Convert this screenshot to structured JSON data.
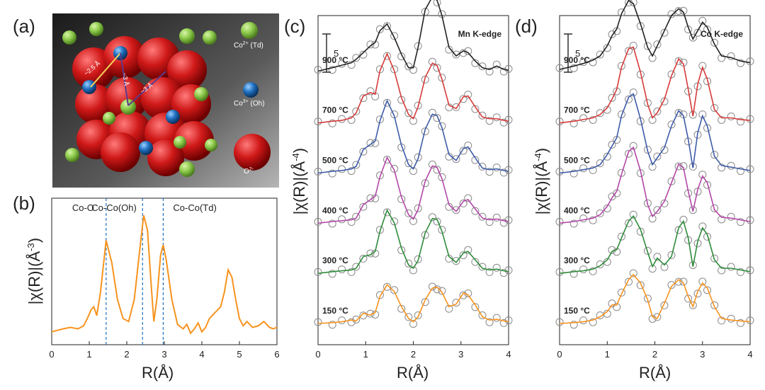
{
  "figure": {
    "panel_labels": {
      "a": "(a)",
      "b": "(b)",
      "c": "(c)",
      "d": "(d)"
    },
    "crystal_legend": [
      {
        "label_main": "Co",
        "label_sup": "2+",
        "label_tail": " (Td)",
        "color": "#8ecb4c"
      },
      {
        "label_main": "Co",
        "label_sup": "3+",
        "label_tail": " (Oh)",
        "color": "#1f6fc0"
      },
      {
        "label_main": "O",
        "label_sup": "2-",
        "label_tail": "",
        "color": "#d01919"
      }
    ],
    "crystal_distances": [
      "~2.5 Å",
      "~3 Å",
      "~3 Å"
    ]
  },
  "chart_data": [
    {
      "id": "b",
      "type": "line",
      "xlabel": "R(Å)",
      "ylabel": "|χ(R)|(Å-3)",
      "xlim": [
        0,
        6
      ],
      "xticks": [
        0,
        1,
        2,
        3,
        4,
        5,
        6
      ],
      "color": "#f7931e",
      "annotations": [
        {
          "text": "Co-O",
          "x": 1.45
        },
        {
          "text": "Co-Co(Oh)",
          "x": 2.42
        },
        {
          "text": "Co-Co(Td)",
          "x": 2.97
        }
      ],
      "x": [
        0,
        0.3,
        0.5,
        0.7,
        0.85,
        0.95,
        1.05,
        1.12,
        1.2,
        1.3,
        1.45,
        1.6,
        1.75,
        1.9,
        2.05,
        2.2,
        2.35,
        2.45,
        2.55,
        2.65,
        2.72,
        2.8,
        2.9,
        2.97,
        3.05,
        3.2,
        3.35,
        3.5,
        3.6,
        3.7,
        3.8,
        3.9,
        4.0,
        4.1,
        4.2,
        4.35,
        4.5,
        4.6,
        4.7,
        4.8,
        4.9,
        5.0,
        5.1,
        5.2,
        5.35,
        5.5,
        5.65,
        5.8,
        5.9,
        6.0
      ],
      "y": [
        0.03,
        0.05,
        0.06,
        0.05,
        0.07,
        0.12,
        0.18,
        0.2,
        0.14,
        0.3,
        0.65,
        0.5,
        0.25,
        0.12,
        0.1,
        0.25,
        0.6,
        0.82,
        0.72,
        0.35,
        0.1,
        0.25,
        0.55,
        0.62,
        0.52,
        0.25,
        0.08,
        0.05,
        0.08,
        0.02,
        0.05,
        0.09,
        0.03,
        0.06,
        0.12,
        0.16,
        0.2,
        0.3,
        0.45,
        0.4,
        0.25,
        0.12,
        0.07,
        0.1,
        0.06,
        0.07,
        0.1,
        0.06,
        0.05,
        0.06
      ]
    },
    {
      "id": "c",
      "type": "line",
      "title": "Mn K-edge",
      "xlabel": "R(Å)",
      "ylabel": "|χ(R)|(Å-4)",
      "xlim": [
        0,
        4
      ],
      "xticks": [
        0,
        1,
        2,
        3,
        4
      ],
      "scale_bar": "5",
      "x": [
        0,
        0.3,
        0.5,
        0.7,
        0.8,
        0.95,
        1.1,
        1.2,
        1.3,
        1.45,
        1.6,
        1.75,
        1.9,
        2.0,
        2.1,
        2.25,
        2.4,
        2.5,
        2.6,
        2.75,
        2.9,
        3.05,
        3.15,
        3.3,
        3.45,
        3.6,
        3.75,
        3.9,
        4.0
      ],
      "series": [
        {
          "name": "150 °C",
          "color": "#f7931e",
          "y": [
            0.0,
            0.1,
            0.2,
            0.4,
            0.3,
            1.2,
            1.0,
            1.3,
            3.2,
            4.6,
            3.8,
            2.0,
            0.6,
            0.2,
            0.8,
            2.8,
            4.2,
            4.3,
            3.7,
            2.0,
            2.3,
            3.6,
            3.4,
            2.2,
            0.8,
            0.4,
            0.5,
            0.3,
            0.2
          ]
        },
        {
          "name": "300 °C",
          "color": "#2e8b3a",
          "y": [
            0.0,
            0.2,
            0.3,
            0.4,
            0.6,
            2.0,
            2.2,
            2.6,
            5.0,
            7.5,
            6.0,
            3.0,
            1.0,
            0.6,
            1.5,
            4.8,
            6.5,
            6.4,
            5.0,
            2.0,
            1.3,
            2.4,
            2.6,
            1.6,
            0.6,
            0.4,
            0.5,
            0.3,
            0.2
          ]
        },
        {
          "name": "400 °C",
          "color": "#b247a8",
          "y": [
            0.0,
            0.2,
            0.3,
            0.4,
            0.6,
            2.2,
            2.8,
            3.2,
            5.5,
            7.8,
            6.3,
            3.1,
            1.0,
            0.5,
            1.6,
            5.0,
            6.8,
            6.6,
            5.3,
            2.2,
            1.4,
            2.6,
            2.8,
            1.7,
            0.6,
            0.4,
            0.5,
            0.3,
            0.2
          ]
        },
        {
          "name": "500 °C",
          "color": "#3e5ba8",
          "y": [
            0.0,
            0.2,
            0.3,
            0.5,
            0.8,
            2.8,
            3.4,
            3.8,
            6.2,
            8.6,
            6.8,
            3.3,
            1.0,
            0.5,
            1.7,
            5.2,
            7.0,
            6.8,
            5.4,
            2.2,
            1.5,
            2.9,
            3.1,
            1.8,
            0.6,
            0.4,
            0.5,
            0.3,
            0.2
          ]
        },
        {
          "name": "700 °C",
          "color": "#d63a3a",
          "y": [
            0.0,
            0.2,
            0.3,
            0.6,
            1.2,
            3.2,
            3.6,
            3.4,
            6.2,
            8.2,
            6.2,
            3.0,
            1.0,
            0.5,
            1.9,
            5.4,
            7.1,
            6.8,
            5.2,
            2.1,
            1.7,
            3.1,
            3.2,
            1.9,
            0.7,
            0.5,
            0.5,
            0.3,
            0.2
          ]
        },
        {
          "name": "900 °C",
          "color": "#222222",
          "y": [
            0.2,
            0.6,
            0.9,
            1.2,
            1.6,
            2.4,
            3.2,
            3.6,
            5.0,
            5.8,
            4.2,
            2.2,
            0.6,
            0.6,
            3.0,
            7.5,
            9.0,
            8.6,
            6.8,
            3.0,
            2.0,
            2.6,
            2.4,
            1.4,
            0.6,
            0.4,
            0.8,
            0.4,
            0.3
          ]
        }
      ]
    },
    {
      "id": "d",
      "type": "line",
      "title": "Co K-edge",
      "xlabel": "R(Å)",
      "ylabel": "|χ(R)|(Å-4)",
      "xlim": [
        0,
        4
      ],
      "xticks": [
        0,
        1,
        2,
        3,
        4
      ],
      "scale_bar": "5",
      "x": [
        0,
        0.3,
        0.5,
        0.7,
        0.85,
        1.0,
        1.1,
        1.2,
        1.3,
        1.45,
        1.55,
        1.7,
        1.85,
        1.95,
        2.05,
        2.2,
        2.35,
        2.5,
        2.6,
        2.7,
        2.8,
        2.9,
        3.0,
        3.1,
        3.25,
        3.4,
        3.6,
        3.8,
        4.0
      ],
      "series": [
        {
          "name": "150 °C",
          "color": "#f7931e",
          "y": [
            0.0,
            0.1,
            0.2,
            0.4,
            0.8,
            1.4,
            2.2,
            2.2,
            3.5,
            5.2,
            5.8,
            4.8,
            2.8,
            0.8,
            0.6,
            2.4,
            4.4,
            5.2,
            4.8,
            3.2,
            2.0,
            3.8,
            4.8,
            4.2,
            2.0,
            0.6,
            0.4,
            0.3,
            0.2
          ]
        },
        {
          "name": "300 °C",
          "color": "#2e8b3a",
          "y": [
            0.0,
            0.2,
            0.3,
            0.5,
            0.9,
            1.6,
            2.6,
            2.8,
            4.2,
            6.2,
            6.8,
            5.2,
            2.5,
            0.8,
            1.8,
            1.0,
            2.0,
            5.4,
            6.2,
            4.2,
            0.8,
            3.8,
            5.4,
            4.6,
            1.6,
            0.6,
            0.6,
            0.4,
            0.2
          ]
        },
        {
          "name": "400 °C",
          "color": "#b247a8",
          "y": [
            0.0,
            0.2,
            0.4,
            0.6,
            1.0,
            2.0,
            3.0,
            3.8,
            5.8,
            8.5,
            9.0,
            6.2,
            2.2,
            0.8,
            1.4,
            2.6,
            4.8,
            7.0,
            6.6,
            3.8,
            1.4,
            4.0,
            5.6,
            4.8,
            1.6,
            0.7,
            0.6,
            0.4,
            0.2
          ]
        },
        {
          "name": "500 °C",
          "color": "#3e5ba8",
          "y": [
            0.0,
            0.2,
            0.4,
            0.6,
            1.0,
            2.2,
            3.2,
            4.2,
            6.8,
            9.0,
            9.4,
            6.4,
            2.6,
            1.0,
            1.8,
            3.0,
            5.6,
            7.4,
            6.8,
            4.0,
            0.6,
            4.8,
            6.8,
            5.6,
            2.0,
            0.9,
            0.7,
            0.5,
            0.3
          ]
        },
        {
          "name": "700 °C",
          "color": "#d63a3a",
          "y": [
            0.0,
            0.2,
            0.4,
            0.6,
            1.0,
            1.8,
            2.8,
            4.0,
            6.6,
            8.8,
            9.0,
            6.0,
            2.2,
            0.6,
            1.2,
            2.8,
            5.6,
            7.6,
            7.0,
            4.0,
            0.8,
            4.6,
            6.6,
            5.2,
            1.6,
            0.6,
            0.6,
            0.4,
            0.3
          ]
        },
        {
          "name": "900 °C",
          "color": "#222222",
          "y": [
            0.4,
            0.8,
            1.1,
            1.5,
            2.0,
            3.2,
            4.4,
            5.2,
            7.0,
            8.6,
            8.2,
            5.8,
            3.0,
            2.0,
            3.2,
            5.0,
            6.8,
            7.6,
            7.2,
            5.4,
            4.0,
            5.0,
            6.0,
            5.4,
            3.4,
            2.0,
            1.8,
            1.4,
            1.2
          ]
        }
      ]
    }
  ]
}
